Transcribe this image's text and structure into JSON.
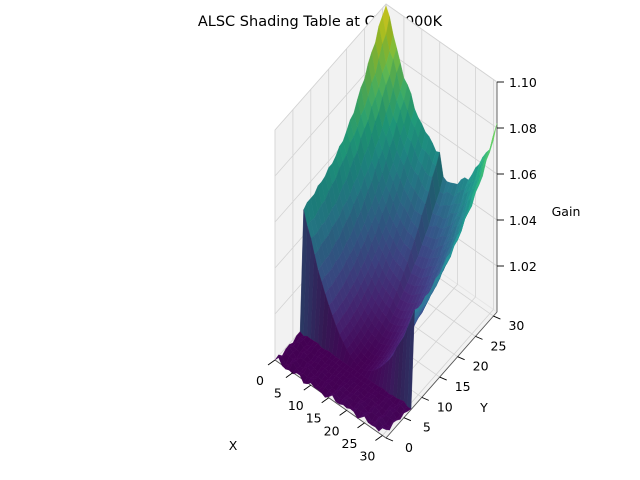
{
  "chart_data": {
    "type": "surface",
    "title": "ALSC Shading Table at CT=4000K",
    "xlabel": "X",
    "ylabel": "Y",
    "zlabel": "Gain",
    "colormap": "viridis",
    "grid": true,
    "x_range": [
      0,
      31
    ],
    "y_range": [
      0,
      31
    ],
    "z_range": [
      1.0,
      1.1
    ],
    "x_ticks": [
      0,
      5,
      10,
      15,
      20,
      25,
      30
    ],
    "y_ticks": [
      0,
      5,
      10,
      15,
      20,
      25,
      30
    ],
    "z_ticks": [
      1.02,
      1.04,
      1.06,
      1.08,
      1.1
    ],
    "z_tick_labels": [
      "1.02",
      "1.04",
      "1.06",
      "1.08",
      "1.10"
    ],
    "grid_size": 32,
    "min_gain": 1.0,
    "corner_gains": {
      "x0_y0": 1.0,
      "x31_y0": 1.002,
      "x0_y31": 1.1,
      "x31_y31": 1.08
    },
    "corner_annotations": [],
    "pane_color": "#f2f2f2"
  }
}
